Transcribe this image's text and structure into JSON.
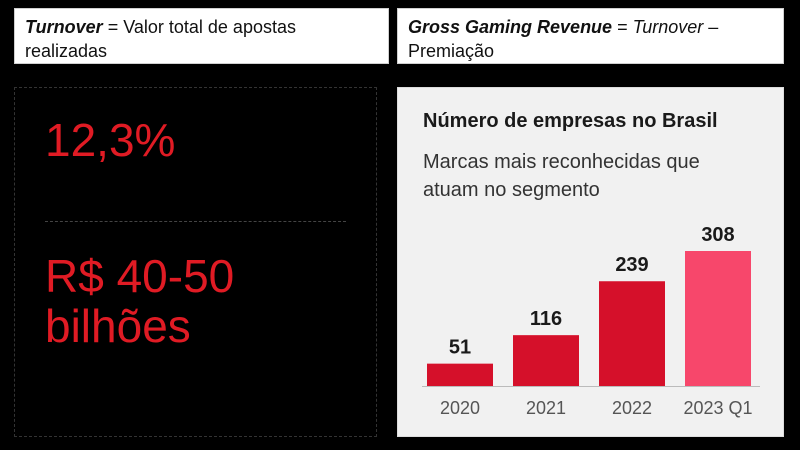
{
  "definitions": {
    "turnover": {
      "term": "Turnover",
      "text": " = Valor total de apostas realizadas"
    },
    "ggr": {
      "term": "Gross Gaming Revenue",
      "eq": " = ",
      "term2": "Turnover",
      "rest": " – Premiação"
    }
  },
  "stats": [
    "12,3%",
    "R$ 40-50 bilhões"
  ],
  "colors": {
    "accent": "#e01b24",
    "bar": "#d5102a",
    "bar_highlight": "#f7476b"
  },
  "chart_data": {
    "type": "bar",
    "title": "Número de empresas no Brasil",
    "subtitle": "Marcas mais reconhecidas que atuam no segmento",
    "categories": [
      "2020",
      "2021",
      "2022",
      "2023 Q1"
    ],
    "values": [
      51,
      116,
      239,
      308
    ],
    "ylim": [
      0,
      308
    ],
    "grid": false,
    "data_labels": true
  }
}
